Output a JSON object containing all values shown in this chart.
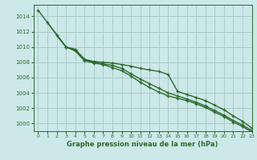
{
  "background_color": "#cce8e8",
  "grid_color": "#aacccc",
  "line_color": "#2d6a2d",
  "title": "Graphe pression niveau de la mer (hPa)",
  "xlim": [
    -0.5,
    23
  ],
  "ylim": [
    999.0,
    1015.5
  ],
  "yticks": [
    1000,
    1002,
    1004,
    1006,
    1008,
    1010,
    1012,
    1014
  ],
  "xticks": [
    0,
    1,
    2,
    3,
    4,
    5,
    6,
    7,
    8,
    9,
    10,
    11,
    12,
    13,
    14,
    15,
    16,
    17,
    18,
    19,
    20,
    21,
    22,
    23
  ],
  "series": [
    [
      1014.8,
      null,
      null,
      1010.0,
      1009.7,
      1008.4,
      1008.1,
      1008.0,
      1007.9,
      1007.7,
      1007.5,
      1007.2,
      1007.0,
      1006.8,
      1006.4,
      1004.2,
      1003.8,
      1003.4,
      1003.0,
      1002.4,
      1001.8,
      1001.0,
      1000.3,
      999.4
    ],
    [
      null,
      1013.2,
      null,
      1010.0,
      1009.5,
      1008.3,
      1008.0,
      1007.8,
      1007.6,
      1007.2,
      1006.5,
      1005.8,
      1005.2,
      1004.6,
      1004.0,
      1003.6,
      1003.2,
      1002.8,
      1002.3,
      1001.7,
      1001.1,
      1000.4,
      999.8,
      999.1
    ],
    [
      null,
      null,
      1011.5,
      1010.0,
      1009.5,
      1008.2,
      1007.9,
      1007.7,
      1007.3,
      1006.9,
      1006.2,
      1005.4,
      1004.7,
      1004.1,
      1003.6,
      1003.3,
      1003.0,
      1002.6,
      1002.1,
      1001.5,
      1000.9,
      1000.2,
      999.6,
      998.9
    ]
  ]
}
